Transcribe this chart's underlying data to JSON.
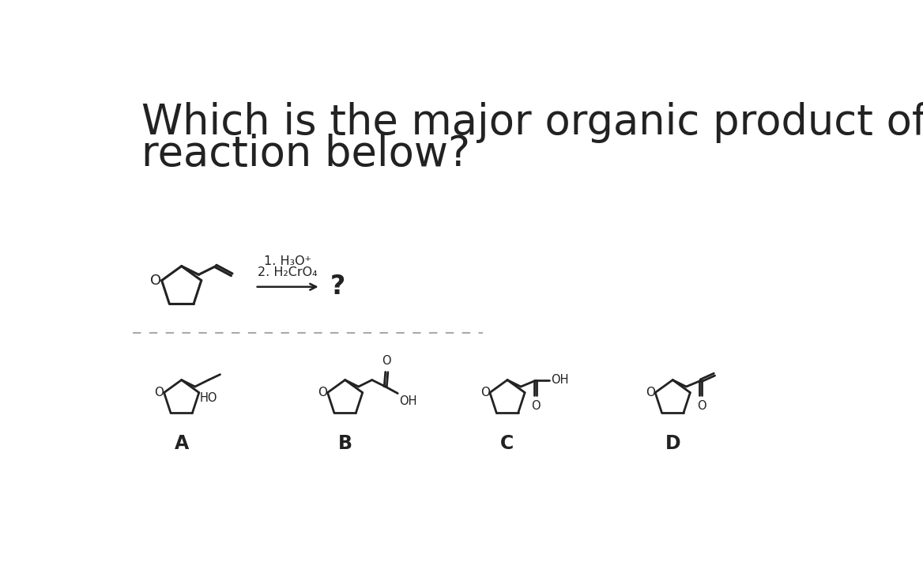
{
  "title_line1": "Which is the major organic product of the",
  "title_line2": "reaction below?",
  "reagents_line1": "1. H₃O⁺",
  "reagents_line2": "2. H₂CrO₄",
  "question_mark": "?",
  "bg_color": "#ffffff",
  "fg_color": "#222222",
  "title_fontsize": 38,
  "dashed_color": "#aaaaaa"
}
